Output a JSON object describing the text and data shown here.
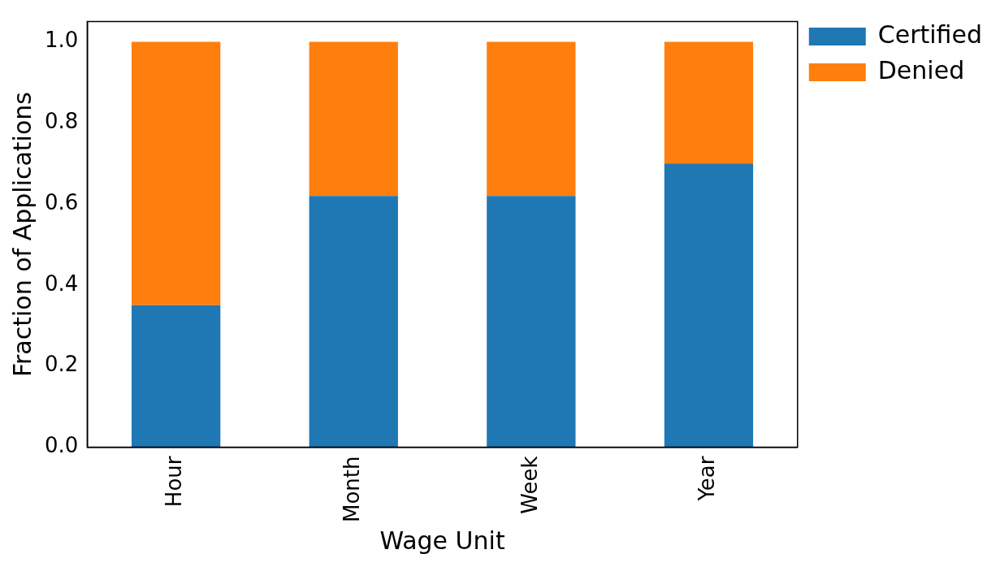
{
  "chart_data": {
    "type": "bar",
    "xlabel": "Wage Unit",
    "ylabel": "Fraction of Applications",
    "categories": [
      "Hour",
      "Month",
      "Week",
      "Year"
    ],
    "stacked": true,
    "series": [
      {
        "name": "Certified",
        "color": "#1f77b4",
        "values": [
          0.35,
          0.62,
          0.62,
          0.7
        ]
      },
      {
        "name": "Denied",
        "color": "#ff7f0e",
        "values": [
          0.65,
          0.38,
          0.38,
          0.3
        ]
      }
    ],
    "ylim": [
      0,
      1.05
    ],
    "yticks": [
      {
        "value": 0,
        "label": "0.0"
      },
      {
        "value": 0.2,
        "label": "0.2"
      },
      {
        "value": 0.4,
        "label": "0.4"
      },
      {
        "value": 0.6,
        "label": "0.6"
      },
      {
        "value": 0.8,
        "label": "0.8"
      },
      {
        "value": 1,
        "label": "1.0"
      }
    ],
    "grid": false,
    "legend": "top right"
  }
}
